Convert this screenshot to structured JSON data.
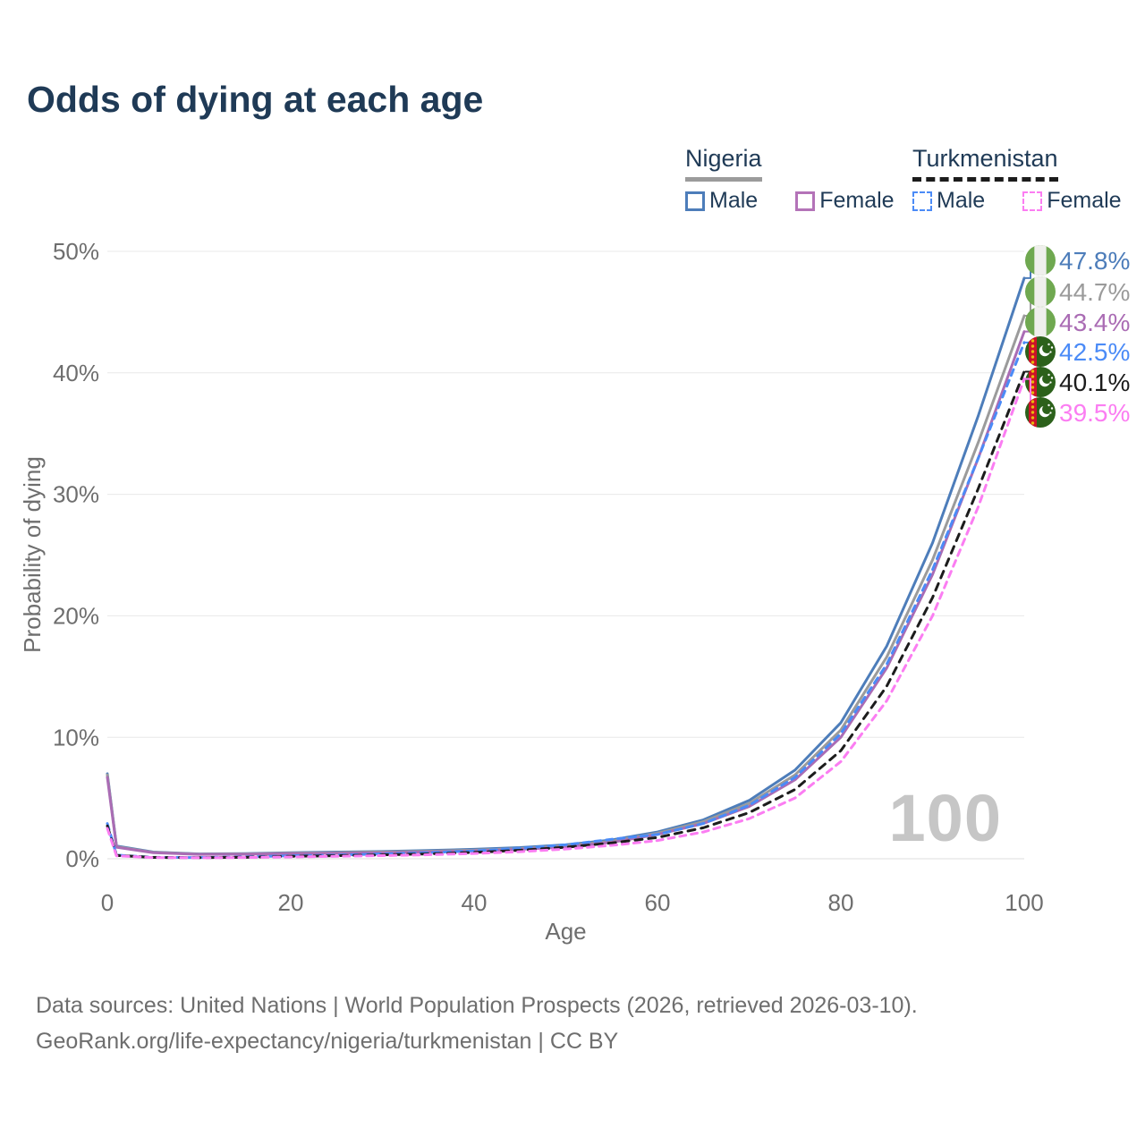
{
  "title": "Odds of dying at each age",
  "watermark_age_counter": "100",
  "footer": {
    "line1": "Data sources: United Nations | World Population Prospects (2026, retrieved 2026-03-10).",
    "line2": "GeoRank.org/life-expectancy/nigeria/turkmenistan | CC BY"
  },
  "legend": {
    "groups": [
      {
        "country": "Nigeria",
        "line_style": "solid",
        "underline_color": "#9b9b9b",
        "items": [
          {
            "label": "Male",
            "color": "#4d7dba",
            "dashed": false
          },
          {
            "label": "Female",
            "color": "#b473b8",
            "dashed": false
          }
        ]
      },
      {
        "country": "Turkmenistan",
        "line_style": "dashed",
        "underline_color": "#1c1c1c",
        "items": [
          {
            "label": "Male",
            "color": "#4b8bf7",
            "dashed": true
          },
          {
            "label": "Female",
            "color": "#fb7df2",
            "dashed": true
          }
        ]
      }
    ]
  },
  "colors": {
    "title": "#1f3a56",
    "axis_text": "#6e6e6e",
    "gridline": "#e8e8e8",
    "baseline": "#dcdcdc",
    "watermark": "#c6c6c6",
    "nigeria_flag_green": "#6fa850",
    "turkmenistan_flag_green": "#2c611b",
    "turkmenistan_flag_red": "#cc1228"
  },
  "chart_data": {
    "type": "line",
    "title": "Odds of dying at each age",
    "xlabel": "Age",
    "ylabel": "Probability of dying",
    "xlim": [
      0,
      100
    ],
    "ylim": [
      0,
      50
    ],
    "xtick_values": [
      0,
      20,
      40,
      60,
      80,
      100
    ],
    "xtick_labels": [
      "0",
      "20",
      "40",
      "60",
      "80",
      "100"
    ],
    "ytick_values": [
      0,
      10,
      20,
      30,
      40,
      50
    ],
    "ytick_labels": [
      "0%",
      "10%",
      "20%",
      "30%",
      "40%",
      "50%"
    ],
    "grid": true,
    "legend_position": "top-right",
    "x": [
      0,
      1,
      5,
      10,
      15,
      20,
      25,
      30,
      35,
      40,
      45,
      50,
      55,
      60,
      65,
      70,
      75,
      80,
      85,
      90,
      95,
      100
    ],
    "series": [
      {
        "name": "Nigeria Male",
        "country": "Nigeria",
        "group": "Male",
        "color": "#4d7dba",
        "dash": null,
        "flag": "nigeria",
        "end_label": "47.8%",
        "end_value": 47.8,
        "values": [
          7.0,
          1.05,
          0.55,
          0.4,
          0.42,
          0.5,
          0.55,
          0.6,
          0.68,
          0.78,
          0.92,
          1.15,
          1.55,
          2.2,
          3.2,
          4.8,
          7.3,
          11.2,
          17.5,
          26.0,
          36.5,
          47.8
        ]
      },
      {
        "name": "Nigeria Both sexes",
        "country": "Nigeria",
        "group": "Both",
        "color": "#9b9b9b",
        "dash": null,
        "flag": "nigeria",
        "end_label": "44.7%",
        "end_value": 44.7,
        "values": [
          6.9,
          1.0,
          0.53,
          0.38,
          0.4,
          0.46,
          0.5,
          0.55,
          0.62,
          0.71,
          0.84,
          1.06,
          1.45,
          2.1,
          3.05,
          4.55,
          6.9,
          10.6,
          16.6,
          24.6,
          34.3,
          44.7
        ]
      },
      {
        "name": "Nigeria Female",
        "country": "Nigeria",
        "group": "Female",
        "color": "#aa6cb4",
        "dash": null,
        "flag": "nigeria",
        "end_label": "43.4%",
        "end_value": 43.4,
        "values": [
          6.7,
          0.95,
          0.5,
          0.36,
          0.37,
          0.42,
          0.45,
          0.5,
          0.56,
          0.65,
          0.77,
          0.97,
          1.35,
          2.0,
          2.9,
          4.3,
          6.5,
          10.0,
          15.7,
          23.4,
          33.0,
          43.4
        ]
      },
      {
        "name": "Turkmenistan Male",
        "country": "Turkmenistan",
        "group": "Male",
        "color": "#4b8bf7",
        "dash": "7 6",
        "flag": "turkmenistan",
        "end_label": "42.5%",
        "end_value": 42.5,
        "values": [
          2.9,
          0.3,
          0.12,
          0.1,
          0.15,
          0.25,
          0.3,
          0.4,
          0.5,
          0.65,
          0.85,
          1.15,
          1.6,
          2.0,
          2.9,
          4.4,
          6.7,
          10.3,
          16.0,
          23.8,
          33.0,
          42.5
        ]
      },
      {
        "name": "Turkmenistan Both sexes",
        "country": "Turkmenistan",
        "group": "Both",
        "color": "#1c1c1c",
        "dash": "8 7",
        "flag": "turkmenistan",
        "end_label": "40.1%",
        "end_value": 40.1,
        "values": [
          2.7,
          0.27,
          0.11,
          0.09,
          0.12,
          0.2,
          0.25,
          0.32,
          0.4,
          0.52,
          0.7,
          0.95,
          1.3,
          1.75,
          2.55,
          3.8,
          5.7,
          8.9,
          14.2,
          21.5,
          30.5,
          40.1
        ]
      },
      {
        "name": "Turkmenistan Female",
        "country": "Turkmenistan",
        "group": "Female",
        "color": "#fb7df2",
        "dash": "7 6",
        "flag": "turkmenistan",
        "end_label": "39.5%",
        "end_value": 39.5,
        "values": [
          2.5,
          0.24,
          0.1,
          0.08,
          0.1,
          0.15,
          0.2,
          0.26,
          0.33,
          0.43,
          0.58,
          0.8,
          1.1,
          1.5,
          2.2,
          3.3,
          5.0,
          8.0,
          13.0,
          20.0,
          29.0,
          39.5
        ]
      }
    ]
  }
}
